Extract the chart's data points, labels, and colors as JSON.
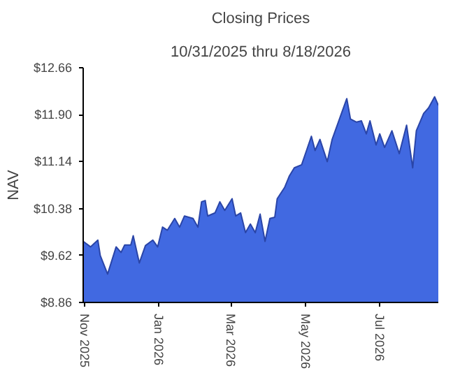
{
  "chart_data": {
    "type": "area",
    "title": "Closing Prices",
    "subtitle": "10/31/2025 thru 8/18/2026",
    "ylabel": "NAV",
    "x": [
      "2025-10-31",
      "2025-11-06",
      "2025-11-12",
      "2025-11-14",
      "2025-11-20",
      "2025-11-27",
      "2025-12-01",
      "2025-12-04",
      "2025-12-09",
      "2025-12-11",
      "2025-12-16",
      "2025-12-21",
      "2025-12-27",
      "2025-12-31",
      "2026-01-04",
      "2026-01-08",
      "2026-01-14",
      "2026-01-18",
      "2026-01-22",
      "2026-01-29",
      "2026-02-02",
      "2026-02-05",
      "2026-02-08",
      "2026-02-10",
      "2026-02-16",
      "2026-02-20",
      "2026-02-24",
      "2026-03-02",
      "2026-03-05",
      "2026-03-09",
      "2026-03-13",
      "2026-03-17",
      "2026-03-21",
      "2026-03-25",
      "2026-03-29",
      "2026-04-02",
      "2026-04-06",
      "2026-04-08",
      "2026-04-14",
      "2026-04-18",
      "2026-04-22",
      "2026-04-28",
      "2026-05-02",
      "2026-05-06",
      "2026-05-09",
      "2026-05-13",
      "2026-05-19",
      "2026-05-23",
      "2026-05-29",
      "2026-06-04",
      "2026-06-07",
      "2026-06-12",
      "2026-06-16",
      "2026-06-20",
      "2026-06-23",
      "2026-06-28",
      "2026-07-01",
      "2026-07-05",
      "2026-07-11",
      "2026-07-17",
      "2026-07-23",
      "2026-07-28",
      "2026-07-31",
      "2026-08-06",
      "2026-08-10",
      "2026-08-15",
      "2026-08-18"
    ],
    "series": [
      {
        "color": "#4169e1",
        "values": [
          9.85,
          9.76,
          9.87,
          9.62,
          9.32,
          9.76,
          9.67,
          9.79,
          9.79,
          9.94,
          9.5,
          9.78,
          9.87,
          9.76,
          10.08,
          10.03,
          10.22,
          10.08,
          10.26,
          10.22,
          10.08,
          10.49,
          10.51,
          10.26,
          10.31,
          10.49,
          10.35,
          10.54,
          10.26,
          10.31,
          9.99,
          10.13,
          9.99,
          10.29,
          9.85,
          10.22,
          10.24,
          10.54,
          10.72,
          10.91,
          11.04,
          11.09,
          11.32,
          11.55,
          11.32,
          11.5,
          11.14,
          11.5,
          11.83,
          12.16,
          11.83,
          11.78,
          11.8,
          11.59,
          11.8,
          11.41,
          11.59,
          11.37,
          11.64,
          11.27,
          11.73,
          11.04,
          11.64,
          11.92,
          12.01,
          12.19,
          12.05
        ]
      }
    ],
    "xlim": [
      "2025-10-31",
      "2026-08-18"
    ],
    "xticks": [
      {
        "value": "2025-11-01",
        "label": "Nov 2025"
      },
      {
        "value": "2026-01-01",
        "label": "Jan 2026"
      },
      {
        "value": "2026-03-01",
        "label": "Mar 2026"
      },
      {
        "value": "2026-05-01",
        "label": "May 2026"
      },
      {
        "value": "2026-07-01",
        "label": "Jul 2026"
      }
    ],
    "ylim": [
      8.86,
      12.66
    ],
    "yticks": [
      {
        "value": 8.86,
        "label": "$8.86"
      },
      {
        "value": 9.62,
        "label": "$9.62"
      },
      {
        "value": 10.38,
        "label": "$10.38"
      },
      {
        "value": 11.14,
        "label": "$11.14"
      },
      {
        "value": 11.9,
        "label": "$11.90"
      },
      {
        "value": 12.66,
        "label": "$12.66"
      }
    ],
    "grid": false
  }
}
